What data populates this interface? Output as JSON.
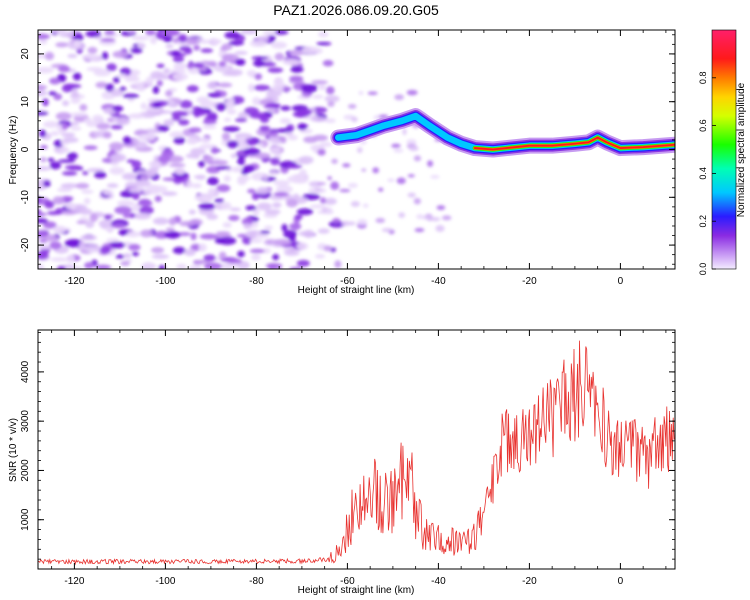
{
  "title": "PAZ1.2026.086.09.20.G05",
  "chart_data": [
    {
      "type": "heatmap",
      "xlabel": "Height of straight line (km)",
      "ylabel": "Frequency (Hz)",
      "xlim": [
        -128,
        12
      ],
      "ylim": [
        -25,
        25
      ],
      "xticks": [
        -120,
        -100,
        -80,
        -60,
        -40,
        -20,
        0
      ],
      "yticks": [
        -20,
        -10,
        0,
        10,
        20
      ],
      "xtick_labels": [
        "-120",
        "-100",
        "-80",
        "-60",
        "-40",
        "-20",
        "0"
      ],
      "ytick_labels": [
        "-20",
        "-10",
        "0",
        "10",
        "20"
      ],
      "colorbar": {
        "label": "Normalized spectral amplitude",
        "range": [
          0,
          1
        ],
        "ticks": [
          0.0,
          0.2,
          0.4,
          0.6,
          0.8
        ],
        "tick_labels": [
          "0.0",
          "0.2",
          "0.4",
          "0.6",
          "0.8"
        ]
      },
      "ridge": {
        "description_points_x": [
          -62,
          -58,
          -55,
          -52,
          -48,
          -45,
          -42,
          -38,
          -35,
          -32,
          -28,
          -25,
          -20,
          -15,
          -10,
          -7,
          -5,
          -3,
          0,
          5,
          12
        ],
        "description_points_y": [
          2.5,
          3.0,
          4.0,
          5.0,
          6.0,
          7.0,
          5.0,
          2.5,
          1.2,
          0.3,
          0.0,
          0.3,
          0.8,
          0.8,
          1.2,
          1.5,
          2.5,
          1.5,
          0.3,
          0.5,
          1.0
        ]
      }
    },
    {
      "type": "line",
      "xlabel": "Height of straight line (km)",
      "ylabel": "SNR (10 * v/v)",
      "xlim": [
        -128,
        12
      ],
      "ylim": [
        0,
        4850
      ],
      "xticks": [
        -120,
        -100,
        -80,
        -60,
        -40,
        -20,
        0
      ],
      "yticks": [
        1000,
        2000,
        3000,
        4000
      ],
      "xtick_labels": [
        "-120",
        "-100",
        "-80",
        "-60",
        "-40",
        "-20",
        "0"
      ],
      "ytick_labels": [
        "1000",
        "2000",
        "3000",
        "4000"
      ],
      "series": [
        {
          "name": "SNR",
          "color": "#e8312e",
          "x": [
            -128,
            -110,
            -90,
            -70,
            -64,
            -62,
            -60,
            -58,
            -56,
            -54,
            -52,
            -50,
            -48,
            -46,
            -44,
            -42,
            -40,
            -38,
            -36,
            -34,
            -32,
            -30,
            -28,
            -26,
            -24,
            -22,
            -20,
            -18,
            -16,
            -14,
            -12,
            -10,
            -8,
            -6,
            -4,
            -2,
            0,
            2,
            4,
            6,
            8,
            10,
            12
          ],
          "y": [
            150,
            150,
            150,
            160,
            200,
            350,
            800,
            1400,
            1700,
            1500,
            1300,
            1400,
            1800,
            1600,
            900,
            600,
            650,
            550,
            600,
            550,
            750,
            1100,
            1800,
            2500,
            2700,
            2600,
            2800,
            2950,
            3100,
            3000,
            3400,
            3550,
            3700,
            3200,
            3000,
            2400,
            2500,
            2800,
            2300,
            2200,
            2500,
            2600,
            2450
          ]
        }
      ]
    }
  ]
}
